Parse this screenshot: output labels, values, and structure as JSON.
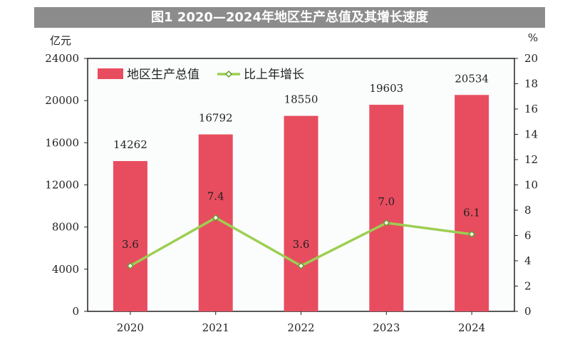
{
  "chart_data": {
    "type": "bar+line",
    "title": "图1 2020—2024年地区生产总值及其增长速度",
    "categories": [
      "2020",
      "2021",
      "2022",
      "2023",
      "2024"
    ],
    "series": [
      {
        "name": "地区生产总值",
        "type": "bar",
        "axis": "left",
        "values": [
          14262,
          16792,
          18550,
          19603,
          20534
        ],
        "color": "#e84d5f"
      },
      {
        "name": "比上年增长",
        "type": "line",
        "axis": "right",
        "values": [
          3.6,
          7.4,
          3.6,
          7.0,
          6.1
        ],
        "color": "#9ccf52"
      }
    ],
    "y_left": {
      "label": "亿元",
      "range": [
        0,
        24000
      ],
      "ticks": [
        0,
        4000,
        8000,
        12000,
        16000,
        20000,
        24000
      ]
    },
    "y_right": {
      "label": "%",
      "range": [
        0,
        20
      ],
      "ticks": [
        0,
        2,
        4,
        6,
        8,
        10,
        12,
        14,
        16,
        18,
        20
      ]
    },
    "legend": "top-left",
    "grid": false
  }
}
